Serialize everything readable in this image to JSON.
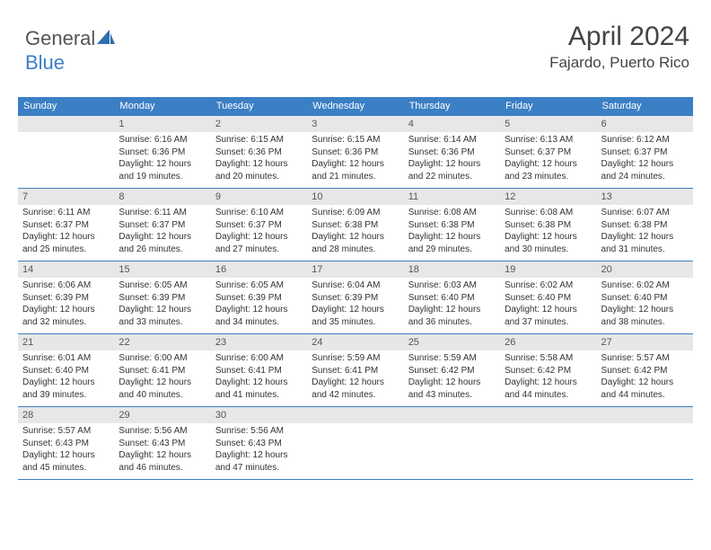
{
  "logo": {
    "word_general": "General",
    "word_blue": "Blue",
    "shape_color": "#2f6fb0"
  },
  "header": {
    "title": "April 2024",
    "subtitle": "Fajardo, Puerto Rico",
    "title_color": "#444444",
    "title_fontsize": 30,
    "subtitle_fontsize": 17
  },
  "calendar": {
    "header_bg": "#3b7fc4",
    "header_fg": "#ffffff",
    "daynum_bg": "#e7e7e7",
    "row_border_color": "#3b7fc4",
    "text_fontsize": 10,
    "daynum_fontsize": 11,
    "days": [
      "Sunday",
      "Monday",
      "Tuesday",
      "Wednesday",
      "Thursday",
      "Friday",
      "Saturday"
    ],
    "weeks": [
      [
        {
          "n": "",
          "sr": "",
          "ss": "",
          "dl": ""
        },
        {
          "n": "1",
          "sr": "Sunrise: 6:16 AM",
          "ss": "Sunset: 6:36 PM",
          "dl": "Daylight: 12 hours and 19 minutes."
        },
        {
          "n": "2",
          "sr": "Sunrise: 6:15 AM",
          "ss": "Sunset: 6:36 PM",
          "dl": "Daylight: 12 hours and 20 minutes."
        },
        {
          "n": "3",
          "sr": "Sunrise: 6:15 AM",
          "ss": "Sunset: 6:36 PM",
          "dl": "Daylight: 12 hours and 21 minutes."
        },
        {
          "n": "4",
          "sr": "Sunrise: 6:14 AM",
          "ss": "Sunset: 6:36 PM",
          "dl": "Daylight: 12 hours and 22 minutes."
        },
        {
          "n": "5",
          "sr": "Sunrise: 6:13 AM",
          "ss": "Sunset: 6:37 PM",
          "dl": "Daylight: 12 hours and 23 minutes."
        },
        {
          "n": "6",
          "sr": "Sunrise: 6:12 AM",
          "ss": "Sunset: 6:37 PM",
          "dl": "Daylight: 12 hours and 24 minutes."
        }
      ],
      [
        {
          "n": "7",
          "sr": "Sunrise: 6:11 AM",
          "ss": "Sunset: 6:37 PM",
          "dl": "Daylight: 12 hours and 25 minutes."
        },
        {
          "n": "8",
          "sr": "Sunrise: 6:11 AM",
          "ss": "Sunset: 6:37 PM",
          "dl": "Daylight: 12 hours and 26 minutes."
        },
        {
          "n": "9",
          "sr": "Sunrise: 6:10 AM",
          "ss": "Sunset: 6:37 PM",
          "dl": "Daylight: 12 hours and 27 minutes."
        },
        {
          "n": "10",
          "sr": "Sunrise: 6:09 AM",
          "ss": "Sunset: 6:38 PM",
          "dl": "Daylight: 12 hours and 28 minutes."
        },
        {
          "n": "11",
          "sr": "Sunrise: 6:08 AM",
          "ss": "Sunset: 6:38 PM",
          "dl": "Daylight: 12 hours and 29 minutes."
        },
        {
          "n": "12",
          "sr": "Sunrise: 6:08 AM",
          "ss": "Sunset: 6:38 PM",
          "dl": "Daylight: 12 hours and 30 minutes."
        },
        {
          "n": "13",
          "sr": "Sunrise: 6:07 AM",
          "ss": "Sunset: 6:38 PM",
          "dl": "Daylight: 12 hours and 31 minutes."
        }
      ],
      [
        {
          "n": "14",
          "sr": "Sunrise: 6:06 AM",
          "ss": "Sunset: 6:39 PM",
          "dl": "Daylight: 12 hours and 32 minutes."
        },
        {
          "n": "15",
          "sr": "Sunrise: 6:05 AM",
          "ss": "Sunset: 6:39 PM",
          "dl": "Daylight: 12 hours and 33 minutes."
        },
        {
          "n": "16",
          "sr": "Sunrise: 6:05 AM",
          "ss": "Sunset: 6:39 PM",
          "dl": "Daylight: 12 hours and 34 minutes."
        },
        {
          "n": "17",
          "sr": "Sunrise: 6:04 AM",
          "ss": "Sunset: 6:39 PM",
          "dl": "Daylight: 12 hours and 35 minutes."
        },
        {
          "n": "18",
          "sr": "Sunrise: 6:03 AM",
          "ss": "Sunset: 6:40 PM",
          "dl": "Daylight: 12 hours and 36 minutes."
        },
        {
          "n": "19",
          "sr": "Sunrise: 6:02 AM",
          "ss": "Sunset: 6:40 PM",
          "dl": "Daylight: 12 hours and 37 minutes."
        },
        {
          "n": "20",
          "sr": "Sunrise: 6:02 AM",
          "ss": "Sunset: 6:40 PM",
          "dl": "Daylight: 12 hours and 38 minutes."
        }
      ],
      [
        {
          "n": "21",
          "sr": "Sunrise: 6:01 AM",
          "ss": "Sunset: 6:40 PM",
          "dl": "Daylight: 12 hours and 39 minutes."
        },
        {
          "n": "22",
          "sr": "Sunrise: 6:00 AM",
          "ss": "Sunset: 6:41 PM",
          "dl": "Daylight: 12 hours and 40 minutes."
        },
        {
          "n": "23",
          "sr": "Sunrise: 6:00 AM",
          "ss": "Sunset: 6:41 PM",
          "dl": "Daylight: 12 hours and 41 minutes."
        },
        {
          "n": "24",
          "sr": "Sunrise: 5:59 AM",
          "ss": "Sunset: 6:41 PM",
          "dl": "Daylight: 12 hours and 42 minutes."
        },
        {
          "n": "25",
          "sr": "Sunrise: 5:59 AM",
          "ss": "Sunset: 6:42 PM",
          "dl": "Daylight: 12 hours and 43 minutes."
        },
        {
          "n": "26",
          "sr": "Sunrise: 5:58 AM",
          "ss": "Sunset: 6:42 PM",
          "dl": "Daylight: 12 hours and 44 minutes."
        },
        {
          "n": "27",
          "sr": "Sunrise: 5:57 AM",
          "ss": "Sunset: 6:42 PM",
          "dl": "Daylight: 12 hours and 44 minutes."
        }
      ],
      [
        {
          "n": "28",
          "sr": "Sunrise: 5:57 AM",
          "ss": "Sunset: 6:43 PM",
          "dl": "Daylight: 12 hours and 45 minutes."
        },
        {
          "n": "29",
          "sr": "Sunrise: 5:56 AM",
          "ss": "Sunset: 6:43 PM",
          "dl": "Daylight: 12 hours and 46 minutes."
        },
        {
          "n": "30",
          "sr": "Sunrise: 5:56 AM",
          "ss": "Sunset: 6:43 PM",
          "dl": "Daylight: 12 hours and 47 minutes."
        },
        {
          "n": "",
          "sr": "",
          "ss": "",
          "dl": ""
        },
        {
          "n": "",
          "sr": "",
          "ss": "",
          "dl": ""
        },
        {
          "n": "",
          "sr": "",
          "ss": "",
          "dl": ""
        },
        {
          "n": "",
          "sr": "",
          "ss": "",
          "dl": ""
        }
      ]
    ]
  }
}
